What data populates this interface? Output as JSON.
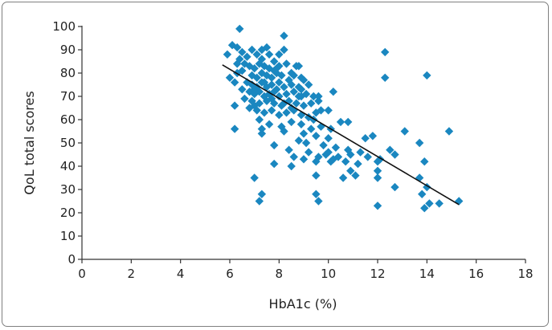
{
  "chart_data": {
    "type": "scatter",
    "title": "",
    "xlabel": "HbA1c (%)",
    "ylabel": "QoL total scores",
    "xlim": [
      0,
      18
    ],
    "ylim": [
      0,
      100
    ],
    "xticks": [
      0,
      2,
      4,
      6,
      8,
      10,
      12,
      14,
      16,
      18
    ],
    "yticks": [
      0,
      10,
      20,
      30,
      40,
      50,
      60,
      70,
      80,
      90,
      100
    ],
    "grid": false,
    "legend": "none",
    "marker_color": "#1a87c0",
    "line_color": "#111111",
    "trendline": {
      "x": [
        5.7,
        15.3
      ],
      "y": [
        83.5,
        23.5
      ]
    },
    "points": [
      [
        6.4,
        99
      ],
      [
        8.2,
        96
      ],
      [
        12.3,
        89
      ],
      [
        5.9,
        88
      ],
      [
        6.1,
        92
      ],
      [
        6.3,
        91
      ],
      [
        6.5,
        89
      ],
      [
        6.7,
        87
      ],
      [
        6.9,
        90
      ],
      [
        7.1,
        88
      ],
      [
        7.3,
        86
      ],
      [
        7.5,
        91
      ],
      [
        7.6,
        88
      ],
      [
        7.8,
        85
      ],
      [
        8.0,
        88
      ],
      [
        8.2,
        90
      ],
      [
        6.4,
        86
      ],
      [
        6.6,
        84
      ],
      [
        6.8,
        83
      ],
      [
        7.0,
        82
      ],
      [
        7.2,
        84
      ],
      [
        7.4,
        83
      ],
      [
        7.6,
        82
      ],
      [
        7.8,
        81
      ],
      [
        8.0,
        83
      ],
      [
        8.3,
        84
      ],
      [
        8.5,
        80
      ],
      [
        8.7,
        83
      ],
      [
        6.3,
        80
      ],
      [
        6.5,
        81
      ],
      [
        6.9,
        79
      ],
      [
        7.1,
        78
      ],
      [
        7.3,
        80
      ],
      [
        7.5,
        79
      ],
      [
        7.7,
        78
      ],
      [
        7.9,
        80
      ],
      [
        8.1,
        79
      ],
      [
        8.4,
        77
      ],
      [
        8.6,
        79
      ],
      [
        8.9,
        78
      ],
      [
        6.0,
        78
      ],
      [
        6.2,
        76
      ],
      [
        6.7,
        76
      ],
      [
        6.9,
        75
      ],
      [
        7.1,
        74
      ],
      [
        7.3,
        76
      ],
      [
        7.5,
        74
      ],
      [
        7.7,
        75
      ],
      [
        8.0,
        76
      ],
      [
        8.2,
        74
      ],
      [
        8.5,
        75
      ],
      [
        8.8,
        74
      ],
      [
        9.0,
        77
      ],
      [
        9.2,
        75
      ],
      [
        6.8,
        72
      ],
      [
        7.0,
        71
      ],
      [
        7.2,
        72
      ],
      [
        7.4,
        70
      ],
      [
        7.6,
        71
      ],
      [
        7.8,
        72
      ],
      [
        8.0,
        70
      ],
      [
        8.3,
        71
      ],
      [
        8.6,
        72
      ],
      [
        8.9,
        70
      ],
      [
        9.1,
        71
      ],
      [
        9.4,
        70
      ],
      [
        10.2,
        72
      ],
      [
        6.6,
        69
      ],
      [
        6.9,
        68
      ],
      [
        7.2,
        67
      ],
      [
        7.5,
        68
      ],
      [
        7.8,
        67
      ],
      [
        8.1,
        66
      ],
      [
        8.4,
        68
      ],
      [
        8.7,
        67
      ],
      [
        9.0,
        66
      ],
      [
        9.3,
        67
      ],
      [
        9.6,
        68
      ],
      [
        6.2,
        66
      ],
      [
        6.8,
        65
      ],
      [
        7.1,
        64
      ],
      [
        7.4,
        63
      ],
      [
        7.7,
        64
      ],
      [
        8.0,
        62
      ],
      [
        8.3,
        63
      ],
      [
        8.6,
        64
      ],
      [
        8.9,
        62
      ],
      [
        9.2,
        61
      ],
      [
        9.5,
        63
      ],
      [
        10.0,
        64
      ],
      [
        7.2,
        60
      ],
      [
        7.6,
        58
      ],
      [
        8.1,
        57
      ],
      [
        8.5,
        59
      ],
      [
        8.9,
        58
      ],
      [
        9.3,
        56
      ],
      [
        9.7,
        57
      ],
      [
        10.1,
        56
      ],
      [
        10.5,
        59
      ],
      [
        10.8,
        59
      ],
      [
        6.2,
        56
      ],
      [
        7.3,
        56
      ],
      [
        8.2,
        55
      ],
      [
        9.0,
        54
      ],
      [
        9.5,
        53
      ],
      [
        10.0,
        52
      ],
      [
        11.5,
        52
      ],
      [
        11.8,
        53
      ],
      [
        13.1,
        55
      ],
      [
        14.9,
        55
      ],
      [
        7.3,
        54
      ],
      [
        8.8,
        51
      ],
      [
        9.1,
        50
      ],
      [
        9.8,
        49
      ],
      [
        10.3,
        48
      ],
      [
        10.8,
        47
      ],
      [
        11.3,
        46
      ],
      [
        12.5,
        47
      ],
      [
        13.7,
        50
      ],
      [
        7.8,
        49
      ],
      [
        8.4,
        47
      ],
      [
        9.2,
        46
      ],
      [
        9.9,
        45
      ],
      [
        10.4,
        44
      ],
      [
        10.9,
        45
      ],
      [
        11.6,
        44
      ],
      [
        12.1,
        43
      ],
      [
        12.7,
        45
      ],
      [
        8.6,
        44
      ],
      [
        9.0,
        43
      ],
      [
        9.6,
        44
      ],
      [
        10.2,
        43
      ],
      [
        10.7,
        42
      ],
      [
        11.2,
        41
      ],
      [
        12.0,
        42
      ],
      [
        13.9,
        42
      ],
      [
        7.8,
        41
      ],
      [
        8.5,
        40
      ],
      [
        9.5,
        42
      ],
      [
        10.1,
        42
      ],
      [
        10.9,
        38
      ],
      [
        11.1,
        36
      ],
      [
        12.0,
        38
      ],
      [
        12.7,
        31
      ],
      [
        14.0,
        31
      ],
      [
        7.0,
        35
      ],
      [
        9.5,
        36
      ],
      [
        10.6,
        35
      ],
      [
        12.0,
        35
      ],
      [
        13.7,
        35
      ],
      [
        7.3,
        28
      ],
      [
        9.5,
        28
      ],
      [
        13.8,
        28
      ],
      [
        7.2,
        25
      ],
      [
        9.6,
        25
      ],
      [
        12.0,
        23
      ],
      [
        13.9,
        22
      ],
      [
        14.1,
        24
      ],
      [
        14.5,
        24
      ],
      [
        15.3,
        25
      ],
      [
        12.3,
        78
      ],
      [
        14.0,
        79
      ],
      [
        7.4,
        76
      ],
      [
        7.0,
        73
      ],
      [
        7.9,
        73
      ],
      [
        8.8,
        70
      ],
      [
        8.2,
        67
      ],
      [
        7.0,
        66
      ],
      [
        6.5,
        73
      ],
      [
        9.6,
        70
      ],
      [
        8.5,
        65
      ],
      [
        7.7,
        69
      ],
      [
        8.9,
        73
      ],
      [
        9.4,
        60
      ],
      [
        10.0,
        46
      ],
      [
        7.9,
        82
      ],
      [
        7.3,
        90
      ],
      [
        6.3,
        84
      ],
      [
        8.8,
        83
      ],
      [
        9.7,
        64
      ]
    ]
  }
}
